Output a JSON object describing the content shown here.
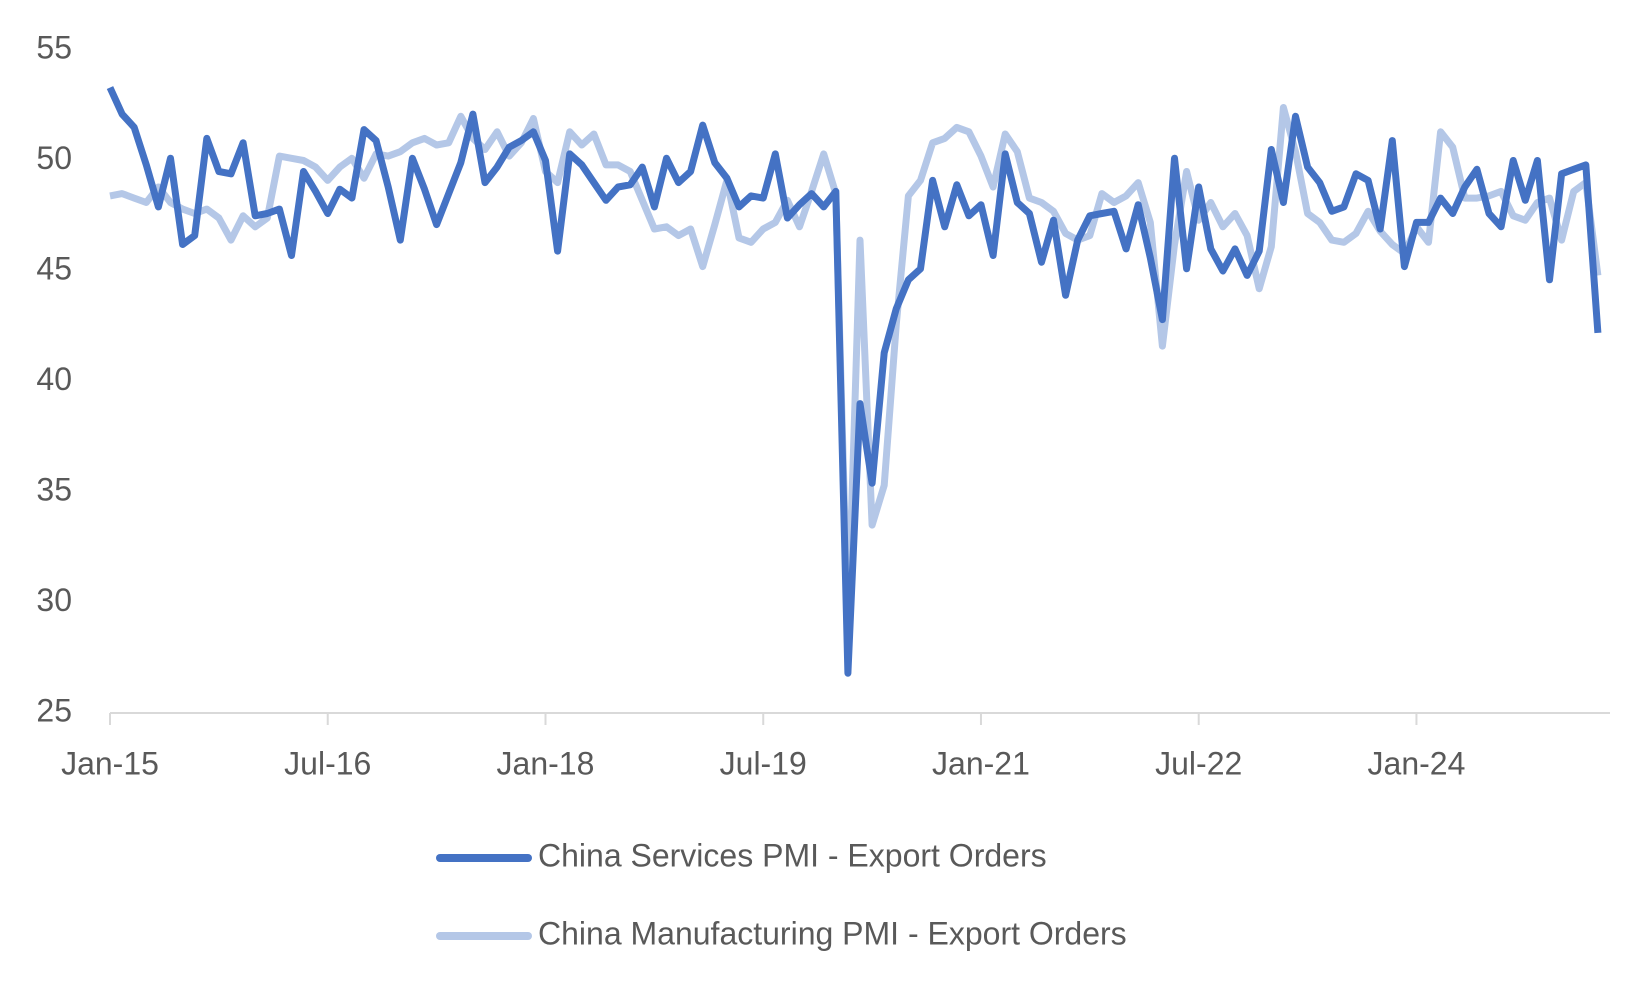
{
  "chart_data": {
    "type": "line",
    "categories": [
      "Jan-15",
      null,
      null,
      null,
      null,
      null,
      null,
      null,
      null,
      null,
      null,
      null,
      null,
      null,
      null,
      null,
      null,
      null,
      "Jul-16",
      null,
      null,
      null,
      null,
      null,
      null,
      null,
      null,
      null,
      null,
      null,
      null,
      null,
      null,
      null,
      null,
      null,
      "Jan-18",
      null,
      null,
      null,
      null,
      null,
      null,
      null,
      null,
      null,
      null,
      null,
      null,
      null,
      null,
      null,
      null,
      null,
      "Jul-19",
      null,
      null,
      null,
      null,
      null,
      null,
      null,
      null,
      null,
      null,
      null,
      null,
      null,
      null,
      null,
      null,
      null,
      "Jan-21",
      null,
      null,
      null,
      null,
      null,
      null,
      null,
      null,
      null,
      null,
      null,
      null,
      null,
      null,
      null,
      null,
      null,
      "Jul-22",
      null,
      null,
      null,
      null,
      null,
      null,
      null,
      null,
      null,
      null,
      null,
      null,
      null,
      null,
      null,
      null,
      null,
      "Jan-24",
      null,
      null,
      null,
      null,
      null,
      null,
      null,
      null,
      null,
      null,
      null,
      null,
      null,
      null,
      null
    ],
    "series": [
      {
        "name": "China Services PMI - Export Orders",
        "color": "#4472c4",
        "values": [
          53.3,
          52.1,
          51.5,
          49.8,
          47.9,
          50.1,
          46.2,
          46.6,
          51.0,
          49.5,
          49.4,
          50.8,
          47.5,
          47.6,
          47.8,
          45.7,
          49.5,
          48.6,
          47.6,
          48.7,
          48.3,
          51.4,
          50.9,
          48.8,
          46.4,
          50.1,
          48.7,
          47.1,
          48.5,
          49.9,
          52.1,
          49.0,
          49.7,
          50.6,
          50.9,
          51.3,
          50.0,
          45.9,
          50.3,
          49.8,
          49.0,
          48.2,
          48.8,
          48.9,
          49.7,
          47.9,
          50.1,
          49.0,
          49.5,
          51.6,
          49.9,
          49.2,
          47.9,
          48.4,
          48.3,
          50.3,
          47.4,
          48.0,
          48.5,
          47.9,
          48.6,
          26.8,
          39.0,
          35.4,
          41.3,
          43.3,
          44.6,
          45.1,
          49.1,
          47.0,
          48.9,
          47.5,
          48.0,
          45.7,
          50.3,
          48.1,
          47.6,
          45.4,
          47.3,
          43.9,
          46.4,
          47.5,
          47.6,
          47.7,
          46.0,
          48.0,
          45.6,
          42.8,
          50.1,
          45.1,
          48.8,
          46.0,
          45.0,
          46.0,
          44.8,
          45.9,
          50.5,
          48.1,
          52.0,
          49.7,
          49.0,
          47.7,
          47.9,
          49.4,
          49.1,
          46.9,
          50.9,
          45.2,
          47.2,
          47.2,
          48.3,
          47.6,
          48.8,
          49.6,
          47.6,
          47.0,
          50.0,
          48.2,
          50.0,
          44.6,
          49.4,
          49.6,
          49.8,
          42.2
        ]
      },
      {
        "name": "China Manufacturing PMI - Export Orders",
        "color": "#b4c7e7",
        "values": [
          48.4,
          48.5,
          48.3,
          48.1,
          48.8,
          48.1,
          47.8,
          47.6,
          47.8,
          47.4,
          46.4,
          47.5,
          47.0,
          47.4,
          50.2,
          50.1,
          50.0,
          49.7,
          49.1,
          49.7,
          50.1,
          49.2,
          50.3,
          50.2,
          50.4,
          50.8,
          51.0,
          50.7,
          50.8,
          52.0,
          51.0,
          50.5,
          51.3,
          50.2,
          50.8,
          51.9,
          49.5,
          49.0,
          51.3,
          50.7,
          51.2,
          49.8,
          49.8,
          49.5,
          48.2,
          46.9,
          47.0,
          46.6,
          46.9,
          45.2,
          47.1,
          49.1,
          46.5,
          46.3,
          46.9,
          47.2,
          48.2,
          47.0,
          48.6,
          50.3,
          48.5,
          28.7,
          46.4,
          33.5,
          35.3,
          42.6,
          48.4,
          49.1,
          50.8,
          51.0,
          51.5,
          51.3,
          50.2,
          48.8,
          51.2,
          50.4,
          48.3,
          48.1,
          47.7,
          46.7,
          46.4,
          46.6,
          48.5,
          48.1,
          48.4,
          49.0,
          47.2,
          41.6,
          46.2,
          49.5,
          47.3,
          48.1,
          47.0,
          47.6,
          46.6,
          44.2,
          46.1,
          52.4,
          50.4,
          47.6,
          47.2,
          46.4,
          46.3,
          46.7,
          47.7,
          46.8,
          46.2,
          45.8,
          47.0,
          46.3,
          51.3,
          50.6,
          48.3,
          48.3,
          48.4,
          48.6,
          47.5,
          47.3,
          48.1,
          48.3,
          46.4,
          48.6,
          49.0,
          44.8
        ]
      }
    ],
    "ylim": [
      25,
      55
    ],
    "yticks": [
      25,
      30,
      35,
      40,
      45,
      50,
      55
    ],
    "grid": false
  }
}
